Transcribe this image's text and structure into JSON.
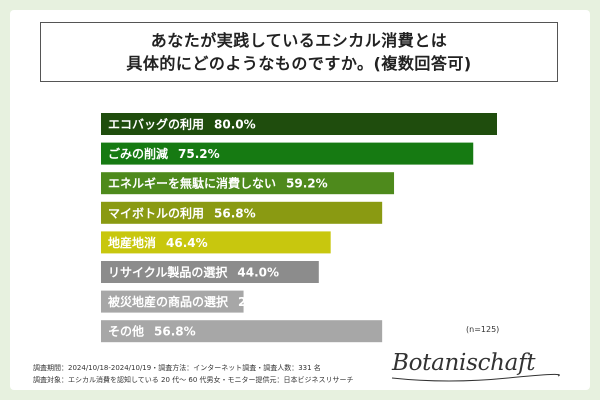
{
  "title": {
    "line1": "あなたが実践しているエシカル消費とは",
    "line2": "具体的にどのようなものですか。(複数回答可)"
  },
  "chart_data": {
    "type": "bar",
    "orientation": "horizontal",
    "categories": [
      "エコバッグの利用",
      "ごみの削減",
      "エネルギーを無駄に消費しない",
      "マイボトルの利用",
      "地産地消",
      "リサイクル製品の選択",
      "被災地産の商品の選択",
      "その他"
    ],
    "values": [
      80.0,
      75.2,
      59.2,
      56.8,
      46.4,
      44.0,
      28.8,
      56.8
    ],
    "value_labels": [
      "80.0%",
      "75.2%",
      "59.2%",
      "56.8%",
      "46.4%",
      "44.0%",
      "28.8%",
      "56.8%"
    ],
    "colors": [
      "#1f4d0d",
      "#167a12",
      "#4e8a1c",
      "#8a9a12",
      "#c8c70e",
      "#8c8c8c",
      "#a7a7a7",
      "#a7a7a7"
    ],
    "xlim": [
      0,
      100
    ],
    "grid": false,
    "legend": "none"
  },
  "sample_size": "(n=125)",
  "footnotes": {
    "line1": "調査期間：2024/10/18-2024/10/19・調査方法：インターネット調査・調査人数：331 名",
    "line2": "調査対象：エシカル消費を認知している 20 代～ 60 代男女・モニター提供元：日本ビジネスリサーチ"
  },
  "logo": {
    "text": "Botanischaft"
  }
}
